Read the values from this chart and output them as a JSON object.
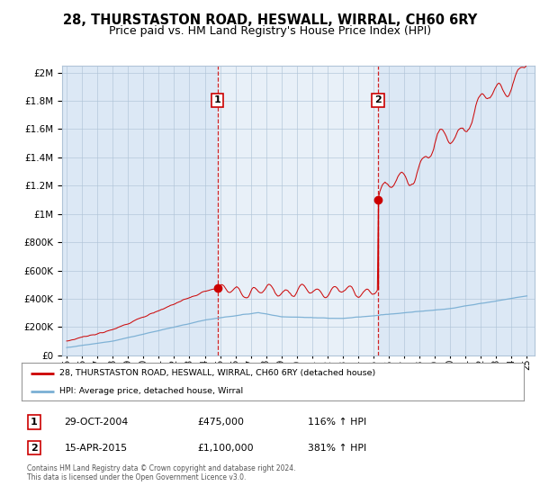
{
  "title": "28, THURSTASTON ROAD, HESWALL, WIRRAL, CH60 6RY",
  "subtitle": "Price paid vs. HM Land Registry's House Price Index (HPI)",
  "title_fontsize": 10.5,
  "subtitle_fontsize": 9,
  "plot_bg_color": "#dce8f5",
  "grid_color": "#b0c4d8",
  "sale1_date": 2004.83,
  "sale1_price": 475000,
  "sale2_date": 2015.29,
  "sale2_price": 1100000,
  "hpi_line_color": "#7aafd4",
  "price_line_color": "#cc0000",
  "ylim_max": 2050000,
  "legend_label1": "28, THURSTASTON ROAD, HESWALL, WIRRAL, CH60 6RY (detached house)",
  "legend_label2": "HPI: Average price, detached house, Wirral",
  "footer": "Contains HM Land Registry data © Crown copyright and database right 2024.\nThis data is licensed under the Open Government Licence v3.0."
}
